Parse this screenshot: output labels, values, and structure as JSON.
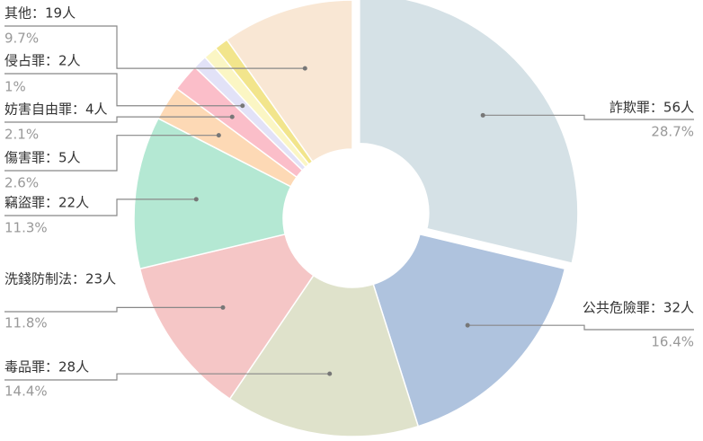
{
  "chart_data": {
    "type": "pie",
    "value_labels": [
      "詐欺罪：56人",
      "公共危險罪：32人",
      "毒品罪：28人",
      "洗錢防制法：23人",
      "竊盜罪：22人",
      "傷害罪：5人",
      "妨害自由罪：4人",
      "侵占罪：2人",
      null,
      null,
      "其他：19人"
    ],
    "values": [
      56,
      32,
      28,
      23,
      22,
      5,
      4,
      2,
      2,
      2,
      19
    ],
    "percent_labels": [
      "28.7%",
      "16.4%",
      "14.4%",
      "11.8%",
      "11.3%",
      "2.6%",
      "2.1%",
      "1%",
      null,
      null,
      "9.7%"
    ],
    "colors": [
      "#d5e1e6",
      "#afc3de",
      "#dfe2cb",
      "#f5c6c6",
      "#b4e8d3",
      "#fdd9b5",
      "#fbbec9",
      "#e2e2f7",
      "#fbf6c4",
      "#f2e58c",
      "#f9e7d4"
    ],
    "exploded": [
      0
    ]
  }
}
